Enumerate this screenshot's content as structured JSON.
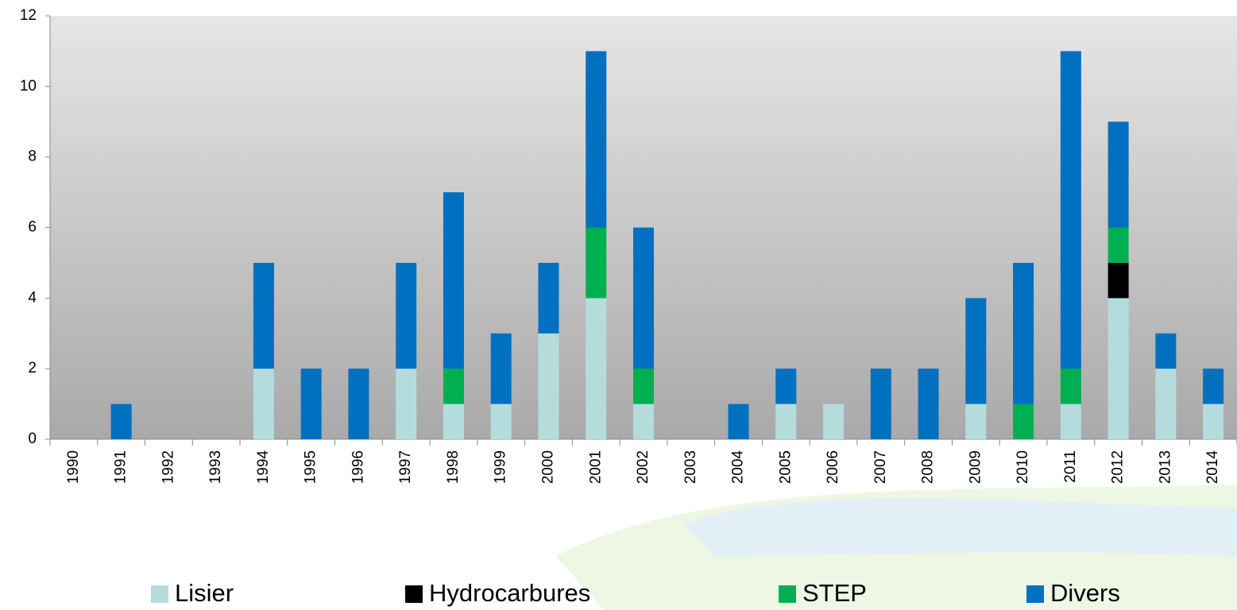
{
  "chart_data": {
    "type": "stacked_bar",
    "categories": [
      "1990",
      "1991",
      "1992",
      "1993",
      "1994",
      "1995",
      "1996",
      "1997",
      "1998",
      "1999",
      "2000",
      "2001",
      "2002",
      "2003",
      "2004",
      "2005",
      "2006",
      "2007",
      "2008",
      "2009",
      "2010",
      "2011",
      "2012",
      "2013",
      "2014"
    ],
    "series": [
      {
        "name": "Lisier",
        "color": "#b4dcdd",
        "values": [
          0,
          0,
          0,
          0,
          2,
          0,
          0,
          2,
          1,
          1,
          3,
          4,
          1,
          0,
          0,
          1,
          1,
          0,
          0,
          1,
          0,
          1,
          4,
          2,
          1
        ]
      },
      {
        "name": "Hydrocarbures",
        "color": "#000000",
        "values": [
          0,
          0,
          0,
          0,
          0,
          0,
          0,
          0,
          0,
          0,
          0,
          0,
          0,
          0,
          0,
          0,
          0,
          0,
          0,
          0,
          0,
          0,
          1,
          0,
          0
        ]
      },
      {
        "name": "STEP",
        "color": "#00b050",
        "values": [
          0,
          0,
          0,
          0,
          0,
          0,
          0,
          0,
          1,
          0,
          0,
          2,
          1,
          0,
          0,
          0,
          0,
          0,
          0,
          0,
          1,
          1,
          1,
          0,
          0
        ]
      },
      {
        "name": "Divers",
        "color": "#0070c0",
        "values": [
          0,
          1,
          0,
          0,
          3,
          2,
          2,
          3,
          5,
          2,
          2,
          5,
          4,
          0,
          1,
          1,
          0,
          2,
          2,
          3,
          4,
          9,
          3,
          1,
          1
        ]
      }
    ],
    "ylim": [
      0,
      12
    ],
    "yticks": [
      0,
      2,
      4,
      6,
      8,
      10,
      12
    ],
    "grid": false,
    "legend": "bottom"
  }
}
